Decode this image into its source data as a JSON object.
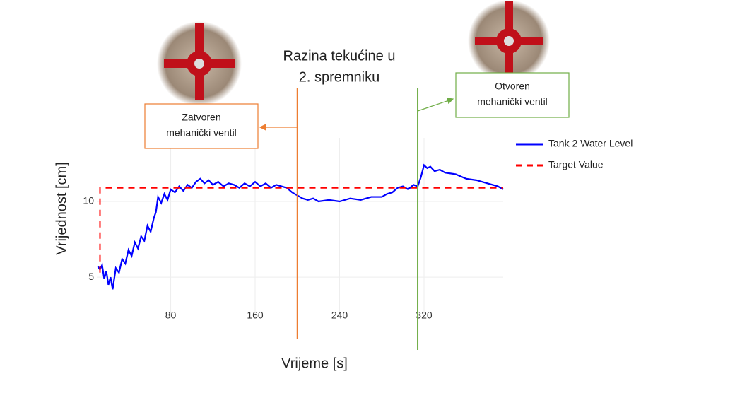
{
  "chart_data": {
    "type": "line",
    "title": [
      "Razina tekućine u",
      "2. spremniku"
    ],
    "xlabel": "Vrijeme [s]",
    "ylabel": "Vrijednost  [cm]",
    "xlim": [
      10,
      395
    ],
    "ylim": [
      2.3,
      14.2
    ],
    "xticks": [
      80,
      160,
      240,
      320
    ],
    "yticks": [
      5,
      10
    ],
    "grid": true,
    "legend": "upper right",
    "series": [
      {
        "name": "Tank 2 Water Level",
        "color": "#0000ff",
        "dash": false,
        "x": [
          11,
          13,
          15,
          17,
          19,
          21,
          23,
          25,
          28,
          31,
          34,
          37,
          40,
          43,
          46,
          49,
          52,
          55,
          58,
          61,
          64,
          66,
          68,
          71,
          74,
          77,
          80,
          84,
          88,
          92,
          96,
          100,
          104,
          108,
          112,
          116,
          120,
          125,
          130,
          135,
          140,
          145,
          150,
          155,
          160,
          165,
          170,
          175,
          180,
          185,
          190,
          195,
          200,
          205,
          210,
          215,
          220,
          230,
          240,
          250,
          260,
          270,
          280,
          285,
          290,
          295,
          300,
          305,
          310,
          314,
          317,
          320,
          323,
          326,
          330,
          335,
          340,
          350,
          360,
          370,
          380,
          390,
          395
        ],
        "values": [
          5.7,
          5.5,
          5.8,
          4.9,
          5.4,
          4.5,
          5.0,
          4.2,
          5.6,
          5.3,
          6.2,
          5.9,
          6.8,
          6.4,
          7.3,
          6.9,
          7.7,
          7.4,
          8.4,
          8.0,
          8.9,
          9.3,
          10.3,
          9.9,
          10.5,
          10.1,
          10.8,
          10.6,
          11.0,
          10.7,
          11.1,
          10.9,
          11.3,
          11.5,
          11.2,
          11.4,
          11.1,
          11.3,
          11.0,
          11.2,
          11.1,
          10.9,
          11.2,
          11.0,
          11.3,
          11.0,
          11.2,
          10.9,
          11.1,
          11.0,
          10.9,
          10.6,
          10.4,
          10.2,
          10.1,
          10.2,
          10.0,
          10.1,
          10.0,
          10.2,
          10.1,
          10.3,
          10.3,
          10.5,
          10.6,
          10.9,
          11.0,
          10.8,
          11.1,
          11.0,
          11.6,
          12.4,
          12.2,
          12.3,
          12.0,
          12.1,
          11.9,
          11.8,
          11.5,
          11.4,
          11.2,
          11.0,
          10.8
        ]
      },
      {
        "name": "Target Value",
        "color": "#ff0000",
        "dash": true,
        "x": [
          13,
          13,
          395
        ],
        "values": [
          5.3,
          10.9,
          10.9
        ]
      }
    ],
    "vlines": [
      {
        "x": 200,
        "color": "#ed7d31",
        "label": [
          "Zatvoren",
          "mehanički ventil"
        ]
      },
      {
        "x": 314,
        "color": "#70ad47",
        "label": [
          "Otvoren",
          "mehanički ventil"
        ]
      }
    ]
  }
}
